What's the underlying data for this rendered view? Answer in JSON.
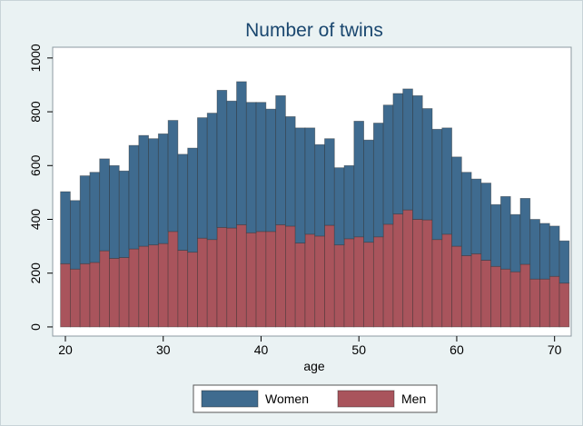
{
  "chart_data": {
    "type": "bar",
    "stacked": true,
    "title": "Number of twins",
    "x_label": "age",
    "x": [
      20,
      21,
      22,
      23,
      24,
      25,
      26,
      27,
      28,
      29,
      30,
      31,
      32,
      33,
      34,
      35,
      36,
      37,
      38,
      39,
      40,
      41,
      42,
      43,
      44,
      45,
      46,
      47,
      48,
      49,
      50,
      51,
      52,
      53,
      54,
      55,
      56,
      57,
      58,
      59,
      60,
      61,
      62,
      63,
      64,
      65,
      66,
      67,
      68,
      69,
      70,
      71
    ],
    "series": [
      {
        "name": "Women",
        "color": "#3f6b8f",
        "values": [
          268,
          255,
          327,
          335,
          342,
          345,
          322,
          385,
          412,
          395,
          408,
          413,
          357,
          387,
          448,
          470,
          510,
          472,
          532,
          485,
          480,
          455,
          480,
          407,
          428,
          395,
          340,
          322,
          287,
          272,
          430,
          380,
          423,
          443,
          448,
          450,
          460,
          414,
          410,
          395,
          332,
          310,
          278,
          287,
          230,
          270,
          213,
          245,
          222,
          207,
          187,
          157
        ]
      },
      {
        "name": "Men",
        "color": "#a9545c",
        "values": [
          235,
          215,
          235,
          240,
          283,
          255,
          258,
          290,
          300,
          305,
          310,
          355,
          285,
          278,
          330,
          325,
          370,
          368,
          380,
          350,
          355,
          355,
          380,
          375,
          312,
          345,
          338,
          378,
          305,
          328,
          335,
          315,
          335,
          382,
          420,
          435,
          400,
          398,
          325,
          345,
          300,
          265,
          272,
          248,
          225,
          215,
          205,
          233,
          178,
          178,
          188,
          163
        ]
      }
    ],
    "xlim": [
      18.7,
      71.7
    ],
    "xticks": [
      20,
      30,
      40,
      50,
      60,
      70
    ],
    "ylim": [
      -34,
      1040
    ],
    "yticks": [
      0,
      200,
      400,
      600,
      800,
      1000
    ],
    "grid": false
  }
}
